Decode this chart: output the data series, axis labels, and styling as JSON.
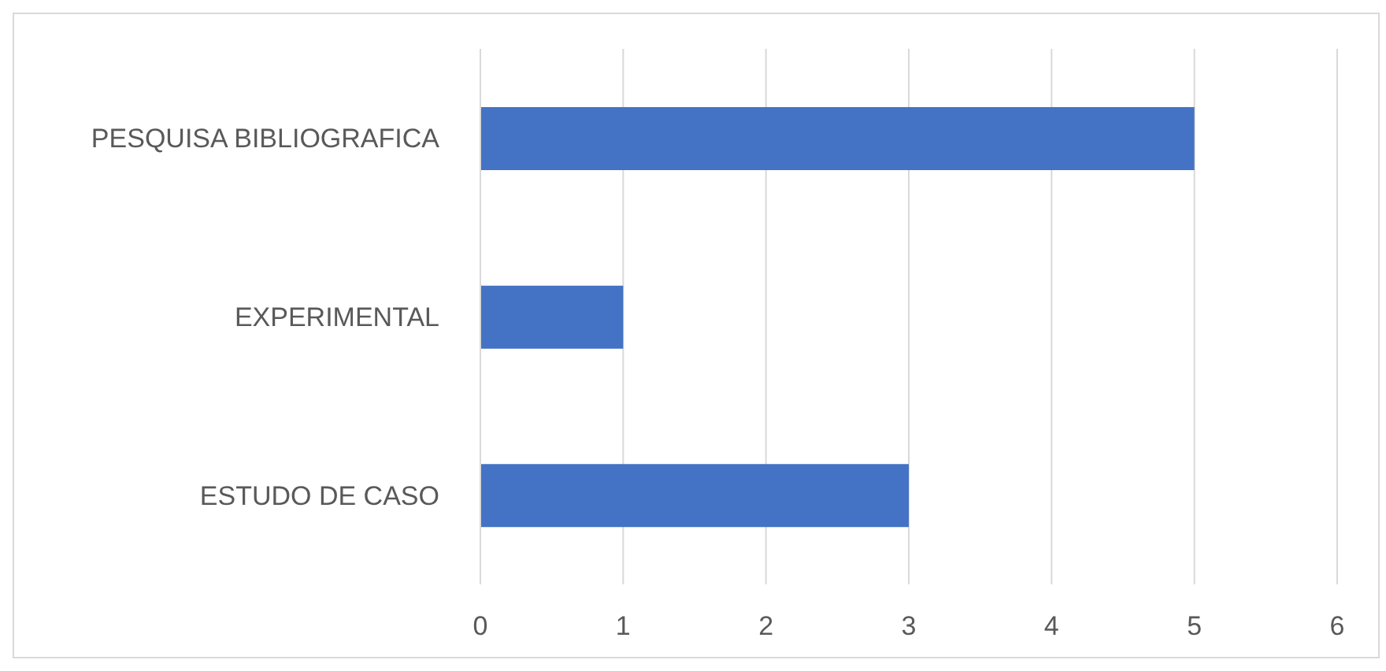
{
  "chart_data": {
    "type": "bar",
    "orientation": "horizontal",
    "categories": [
      "PESQUISA BIBLIOGRAFICA",
      "EXPERIMENTAL",
      "ESTUDO DE CASO"
    ],
    "values": [
      5,
      1,
      3
    ],
    "color": "#4472c4",
    "xlim": [
      0,
      6
    ],
    "xticks": [
      0,
      1,
      2,
      3,
      4,
      5,
      6
    ],
    "grid": "x"
  }
}
